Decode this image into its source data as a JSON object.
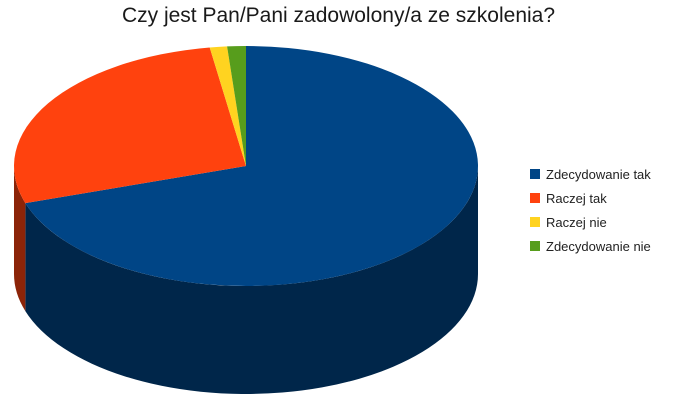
{
  "chart_data": {
    "type": "pie",
    "title": "Czy jest Pan/Pani zadowolony/a ze szkolenia?",
    "categories": [
      "Zdecydowanie tak",
      "Raczej tak",
      "Raczej nie",
      "Zdecydowanie nie"
    ],
    "values": [
      70,
      27.5,
      1.2,
      1.3
    ],
    "colors": [
      "#004586",
      "#ff420e",
      "#ffd320",
      "#579d1c"
    ],
    "legend_position": "right",
    "style": "3d"
  }
}
